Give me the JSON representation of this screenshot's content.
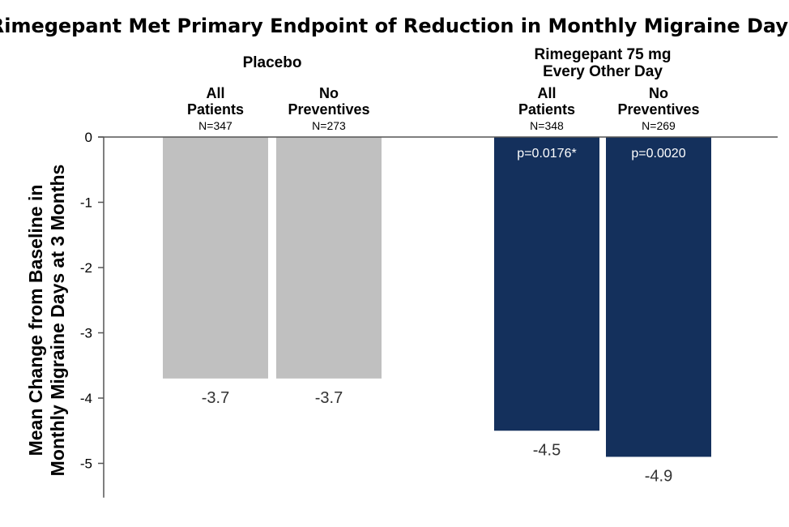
{
  "chart_data": {
    "type": "bar",
    "title": "Rimegepant Met Primary Endpoint of Reduction in Monthly Migraine Days",
    "ylabel_lines": [
      "Mean Change from Baseline in",
      "Monthly Migraine Days at 3 Months"
    ],
    "ylim": [
      -5.5,
      0
    ],
    "yticks": [
      0,
      -1,
      -2,
      -3,
      -4,
      -5
    ],
    "grid": false,
    "groups": [
      {
        "label_lines": [
          "Placebo"
        ],
        "bars": [
          {
            "label_lines": [
              "All",
              "Patients"
            ],
            "n": "N=347",
            "value": -3.7,
            "value_label": "-3.7",
            "color": "#c0c0c0"
          },
          {
            "label_lines": [
              "No",
              "Preventives"
            ],
            "n": "N=273",
            "value": -3.7,
            "value_label": "-3.7",
            "color": "#c0c0c0"
          }
        ]
      },
      {
        "label_lines": [
          "Rimegepant 75 mg",
          "Every Other Day"
        ],
        "bars": [
          {
            "label_lines": [
              "All",
              "Patients"
            ],
            "n": "N=348",
            "value": -4.5,
            "value_label": "-4.5",
            "p_value": "p=0.0176*",
            "color": "#14305c"
          },
          {
            "label_lines": [
              "No",
              "Preventives"
            ],
            "n": "N=269",
            "value": -4.9,
            "value_label": "-4.9",
            "p_value": "p=0.0020",
            "color": "#14305c"
          }
        ]
      }
    ]
  }
}
